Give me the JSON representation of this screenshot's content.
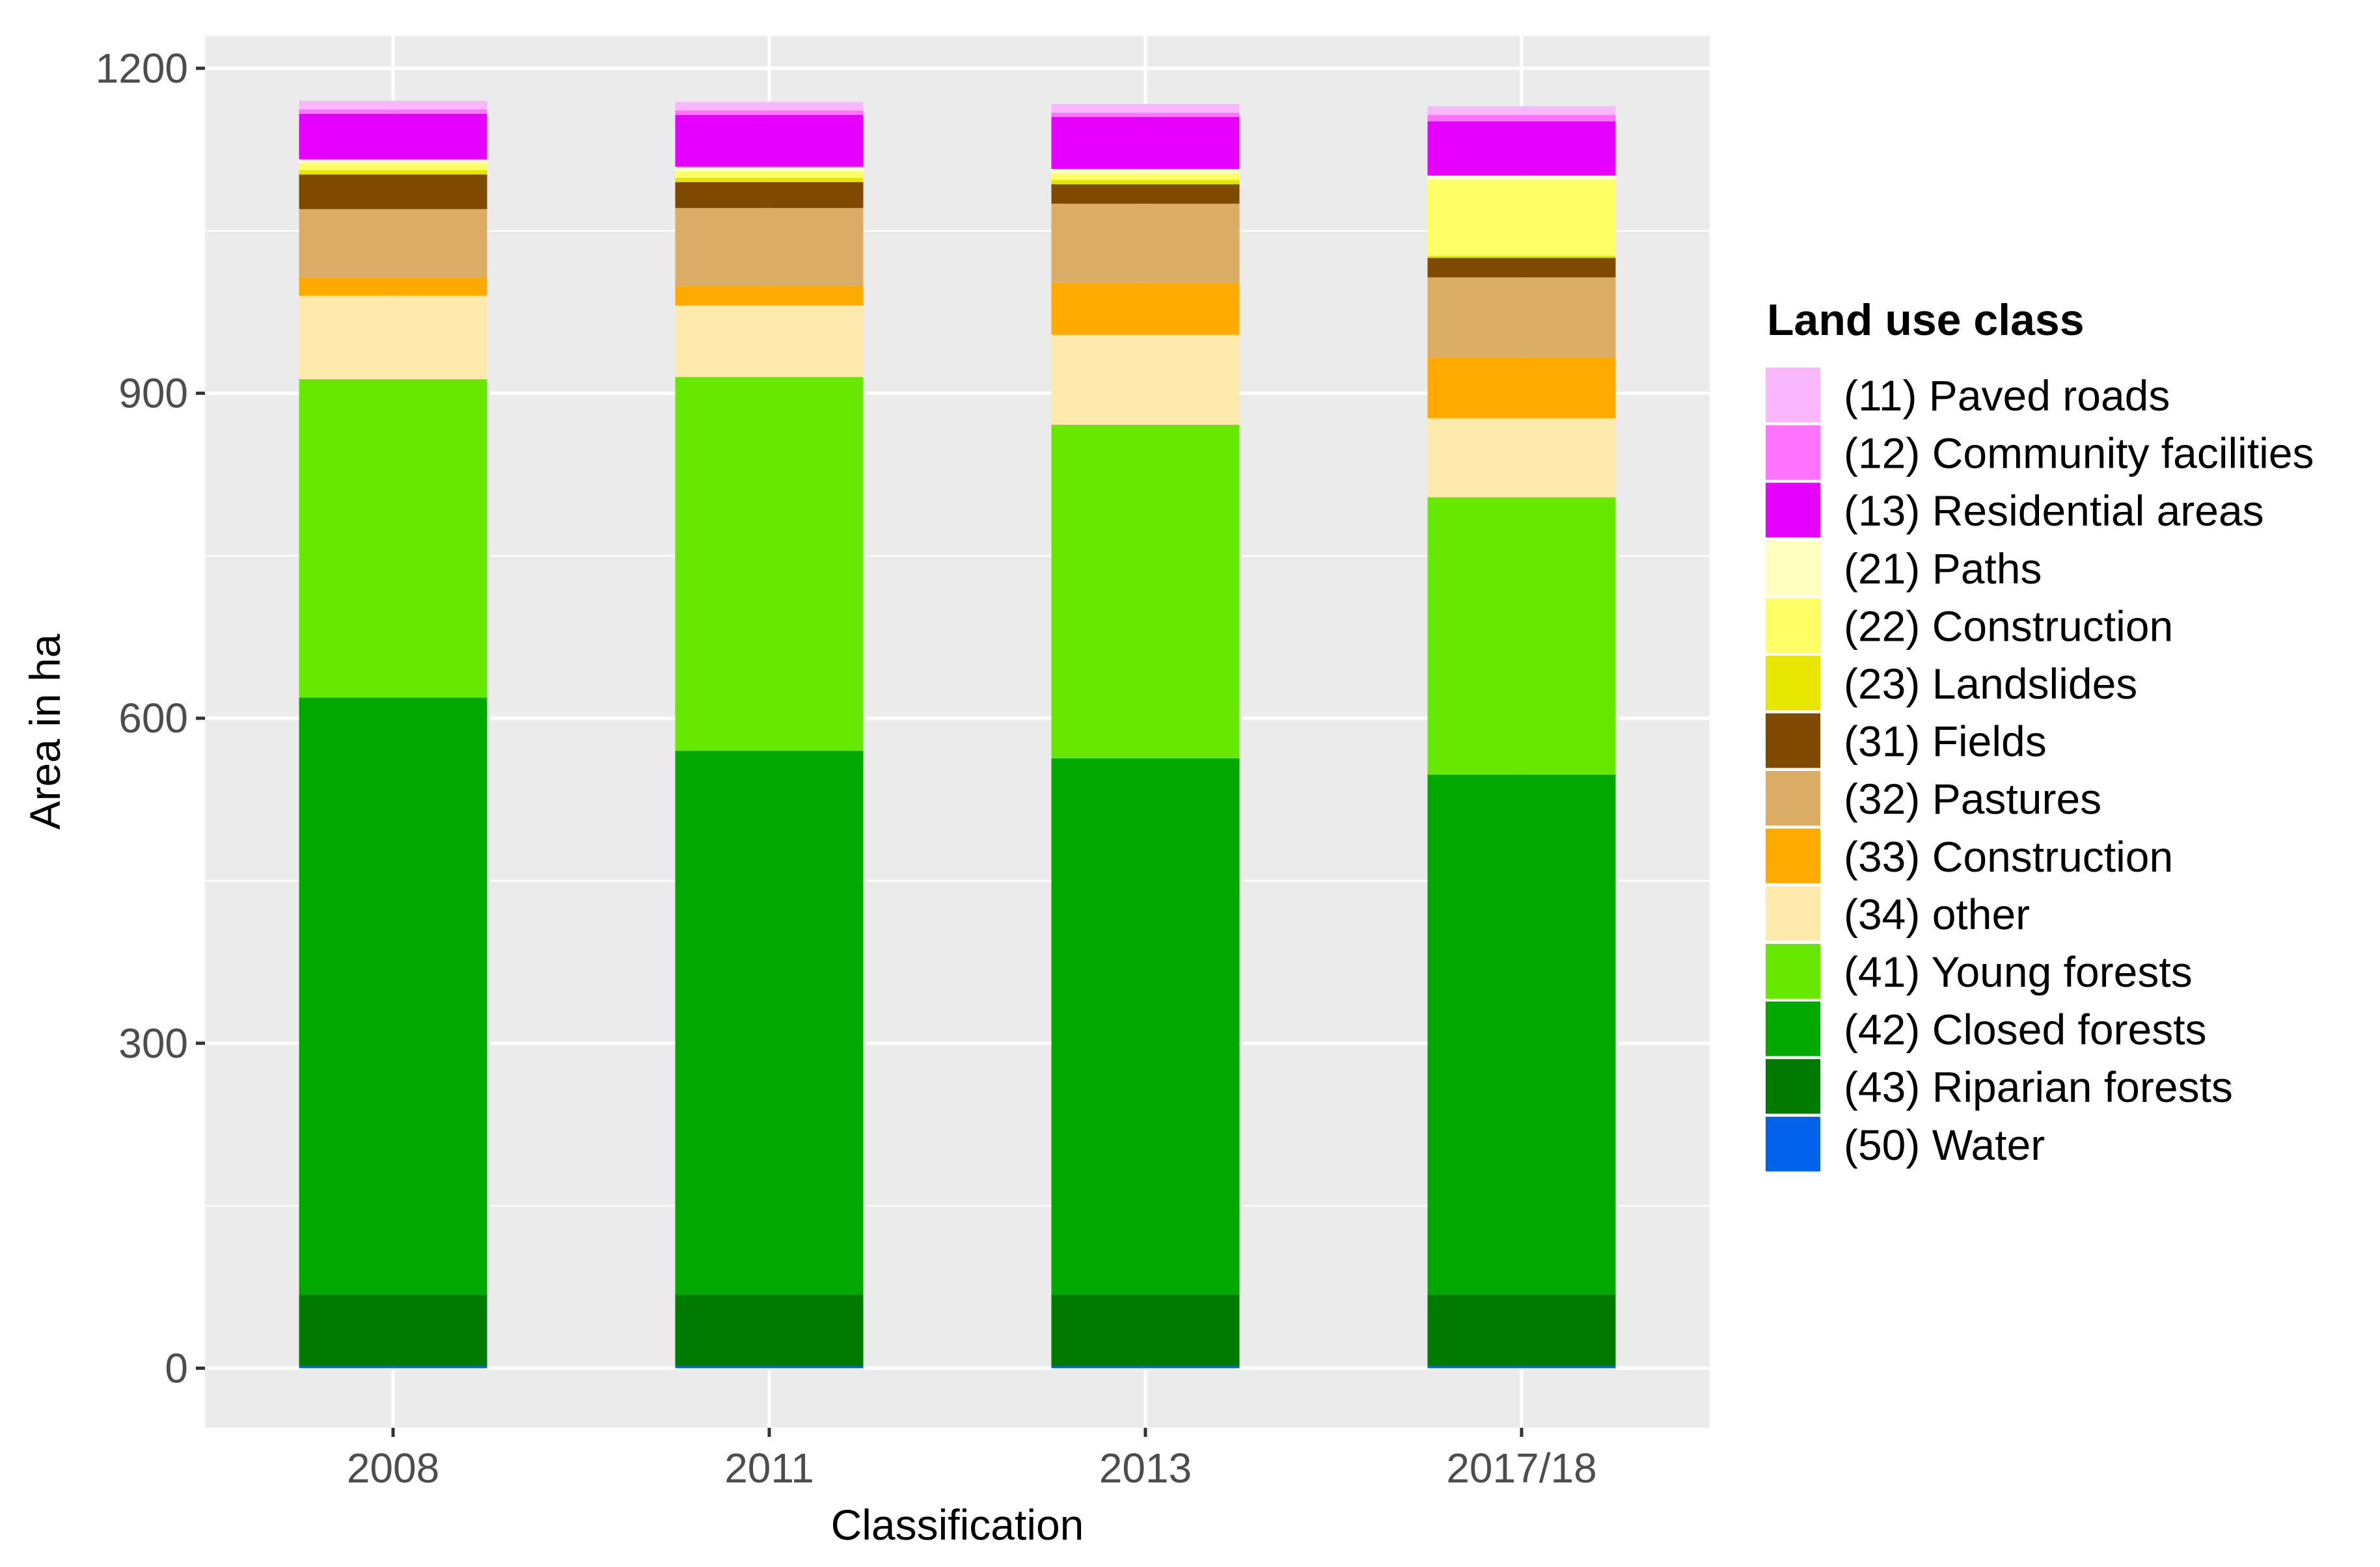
{
  "chart_data": {
    "type": "bar",
    "stacked": true,
    "xlabel": "Classification",
    "ylabel": "Area in ha",
    "ylim": [
      -55,
      1230
    ],
    "y_ticks": [
      0,
      300,
      600,
      900,
      1200
    ],
    "y_tick_labels": [
      "0",
      "300",
      "600",
      "900",
      "1200"
    ],
    "grid": true,
    "legend": {
      "title": "Land use class",
      "position": "right"
    },
    "categories": [
      "2008",
      "2011",
      "2013",
      "2017/18"
    ],
    "series": [
      {
        "name": "(50) Water",
        "color": "#0061EB",
        "values": [
          2,
          2,
          2,
          2
        ]
      },
      {
        "name": "(43) Riparian forests",
        "color": "#007A00",
        "values": [
          66,
          66,
          66,
          66
        ]
      },
      {
        "name": "(42) Closed forests",
        "color": "#00A800",
        "values": [
          551,
          502,
          495,
          480
        ]
      },
      {
        "name": "(41) Young forests",
        "color": "#66E800",
        "values": [
          294,
          345,
          308,
          256
        ]
      },
      {
        "name": "(34) other",
        "color": "#FFEAAE",
        "values": [
          77,
          66,
          83,
          73
        ]
      },
      {
        "name": "(33) Construction",
        "color": "#FFAA00",
        "values": [
          17,
          18,
          48,
          56
        ]
      },
      {
        "name": "(32) Pastures",
        "color": "#DAAC66",
        "values": [
          63,
          72,
          73,
          74
        ]
      },
      {
        "name": "(31) Fields",
        "color": "#7F4A00",
        "values": [
          32,
          24,
          18,
          18
        ]
      },
      {
        "name": "(23) Landslides",
        "color": "#E6E600",
        "values": [
          4,
          4,
          4,
          2
        ]
      },
      {
        "name": "(22) Construction",
        "color": "#FFFF66",
        "values": [
          6,
          6,
          6,
          70
        ]
      },
      {
        "name": "(21) Paths",
        "color": "#FFFFBF",
        "values": [
          4,
          4,
          4,
          4
        ]
      },
      {
        "name": "(13) Residential areas",
        "color": "#E600FF",
        "values": [
          42,
          48,
          48,
          50
        ]
      },
      {
        "name": "(12) Community facilities",
        "color": "#FF73FF",
        "values": [
          4,
          4,
          4,
          6
        ]
      },
      {
        "name": "(11) Paved roads",
        "color": "#F9B7FF",
        "values": [
          8,
          8,
          8,
          8
        ]
      }
    ],
    "legend_order": [
      "(11) Paved roads",
      "(12) Community facilities",
      "(13) Residential areas",
      "(21) Paths",
      "(22) Construction",
      "(23) Landslides",
      "(31) Fields",
      "(32) Pastures",
      "(33) Construction",
      "(34) other",
      "(41) Young forests",
      "(42) Closed forests",
      "(43) Riparian forests",
      "(50) Water"
    ],
    "colors": {
      "panel_background": "#EBEBEB",
      "grid_major": "#FFFFFF",
      "tick_text": "#4D4D4D"
    }
  }
}
